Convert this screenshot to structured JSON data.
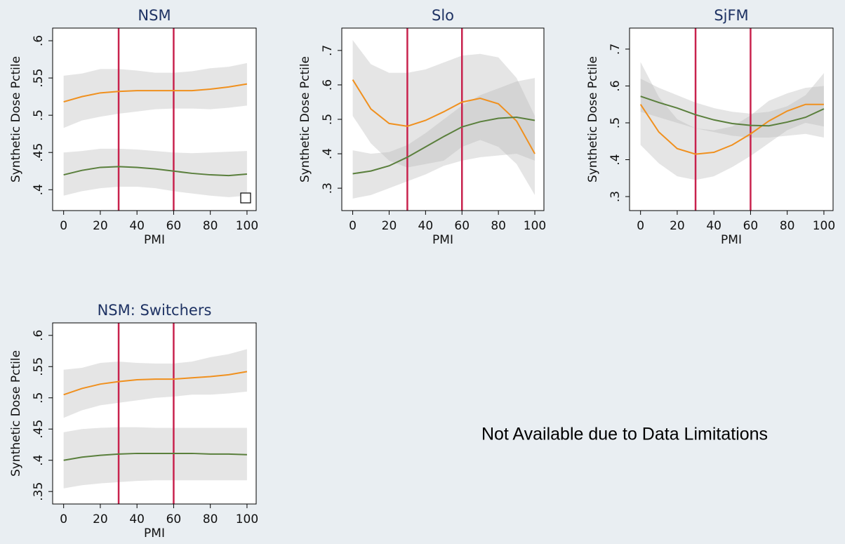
{
  "chart_data": [
    {
      "type": "line",
      "title": "NSM",
      "xlabel": "PMI",
      "ylabel": "Synthetic Dose Pctile",
      "x": [
        0,
        10,
        20,
        30,
        40,
        50,
        60,
        70,
        80,
        90,
        100
      ],
      "xlim": [
        -6,
        105
      ],
      "xticks": [
        0,
        20,
        40,
        60,
        80,
        100
      ],
      "ylim": [
        0.372,
        0.617
      ],
      "yticks": [
        {
          "value": 0.4,
          "label": ".4"
        },
        {
          "value": 0.45,
          "label": ".45"
        },
        {
          "value": 0.5,
          "label": ".5"
        },
        {
          "value": 0.55,
          "label": ".55"
        },
        {
          "value": 0.6,
          "label": ".6"
        }
      ],
      "vlines": [
        30,
        60
      ],
      "vline_color": "#c8224d",
      "band_color": "#b4b4b4",
      "series": [
        {
          "color": "#f0901e",
          "values": [
            0.518,
            0.525,
            0.53,
            0.532,
            0.533,
            0.533,
            0.533,
            0.533,
            0.535,
            0.538,
            0.542
          ],
          "upper": [
            0.553,
            0.556,
            0.562,
            0.562,
            0.56,
            0.557,
            0.557,
            0.559,
            0.563,
            0.565,
            0.57
          ],
          "lower": [
            0.483,
            0.493,
            0.498,
            0.502,
            0.505,
            0.508,
            0.509,
            0.509,
            0.508,
            0.51,
            0.513
          ]
        },
        {
          "color": "#5a7f3c",
          "values": [
            0.42,
            0.426,
            0.43,
            0.431,
            0.43,
            0.428,
            0.425,
            0.422,
            0.42,
            0.419,
            0.421
          ],
          "upper": [
            0.45,
            0.452,
            0.455,
            0.455,
            0.454,
            0.452,
            0.45,
            0.449,
            0.45,
            0.451,
            0.452
          ],
          "lower": [
            0.392,
            0.398,
            0.402,
            0.404,
            0.404,
            0.402,
            0.398,
            0.395,
            0.392,
            0.39,
            0.392
          ]
        }
      ]
    },
    {
      "type": "line",
      "title": "Slo",
      "xlabel": "PMI",
      "ylabel": "Synthetic Dose Pctile",
      "x": [
        0,
        10,
        20,
        30,
        40,
        50,
        60,
        70,
        80,
        90,
        100
      ],
      "xlim": [
        -6,
        105
      ],
      "xticks": [
        0,
        20,
        40,
        60,
        80,
        100
      ],
      "ylim": [
        0.235,
        0.765
      ],
      "yticks": [
        {
          "value": 0.3,
          "label": ".3"
        },
        {
          "value": 0.4,
          "label": ".4"
        },
        {
          "value": 0.5,
          "label": ".5"
        },
        {
          "value": 0.6,
          "label": ".6"
        },
        {
          "value": 0.7,
          "label": ".7"
        }
      ],
      "vlines": [
        30,
        60
      ],
      "vline_color": "#c8224d",
      "band_color": "#b4b4b4",
      "series": [
        {
          "color": "#f0901e",
          "values": [
            0.615,
            0.53,
            0.488,
            0.48,
            0.497,
            0.522,
            0.55,
            0.561,
            0.545,
            0.495,
            0.4
          ],
          "upper": [
            0.73,
            0.66,
            0.635,
            0.635,
            0.645,
            0.665,
            0.685,
            0.69,
            0.68,
            0.62,
            0.51
          ],
          "lower": [
            0.51,
            0.43,
            0.38,
            0.36,
            0.37,
            0.38,
            0.42,
            0.44,
            0.42,
            0.37,
            0.28
          ]
        },
        {
          "color": "#5a7f3c",
          "values": [
            0.342,
            0.35,
            0.365,
            0.39,
            0.42,
            0.45,
            0.478,
            0.493,
            0.503,
            0.506,
            0.497
          ],
          "upper": [
            0.41,
            0.4,
            0.405,
            0.425,
            0.46,
            0.5,
            0.54,
            0.57,
            0.59,
            0.61,
            0.62
          ],
          "lower": [
            0.27,
            0.28,
            0.3,
            0.32,
            0.34,
            0.365,
            0.38,
            0.39,
            0.395,
            0.4,
            0.38
          ]
        }
      ]
    },
    {
      "type": "line",
      "title": "SjFM",
      "xlabel": "PMI",
      "ylabel": "Synthetic Dose Pctile",
      "x": [
        0,
        10,
        20,
        30,
        40,
        50,
        60,
        70,
        80,
        90,
        100
      ],
      "xlim": [
        -6,
        105
      ],
      "xticks": [
        0,
        20,
        40,
        60,
        80,
        100
      ],
      "ylim": [
        0.262,
        0.757
      ],
      "yticks": [
        {
          "value": 0.3,
          "label": ".3"
        },
        {
          "value": 0.4,
          "label": ".4"
        },
        {
          "value": 0.5,
          "label": ".5"
        },
        {
          "value": 0.6,
          "label": ".6"
        },
        {
          "value": 0.7,
          "label": ".7"
        }
      ],
      "vlines": [
        30,
        60
      ],
      "vline_color": "#c8224d",
      "band_color": "#b4b4b4",
      "series": [
        {
          "color": "#f0901e",
          "values": [
            0.55,
            0.475,
            0.43,
            0.415,
            0.42,
            0.44,
            0.47,
            0.505,
            0.532,
            0.55,
            0.55
          ],
          "upper": [
            0.665,
            0.57,
            0.51,
            0.485,
            0.48,
            0.49,
            0.52,
            0.56,
            0.58,
            0.595,
            0.6
          ],
          "lower": [
            0.44,
            0.39,
            0.355,
            0.345,
            0.355,
            0.38,
            0.41,
            0.445,
            0.48,
            0.5,
            0.49
          ]
        },
        {
          "color": "#5a7f3c",
          "values": [
            0.572,
            0.555,
            0.54,
            0.522,
            0.508,
            0.498,
            0.493,
            0.492,
            0.502,
            0.515,
            0.538
          ],
          "upper": [
            0.62,
            0.595,
            0.575,
            0.555,
            0.54,
            0.53,
            0.525,
            0.53,
            0.545,
            0.575,
            0.635
          ],
          "lower": [
            0.53,
            0.515,
            0.5,
            0.485,
            0.475,
            0.465,
            0.46,
            0.46,
            0.465,
            0.47,
            0.46
          ]
        }
      ]
    },
    {
      "type": "line",
      "title": "NSM: Switchers",
      "xlabel": "PMI",
      "ylabel": "Synthetic Dose Pctile",
      "x": [
        0,
        10,
        20,
        30,
        40,
        50,
        60,
        70,
        80,
        90,
        100
      ],
      "xlim": [
        -6,
        105
      ],
      "xticks": [
        0,
        20,
        40,
        60,
        80,
        100
      ],
      "ylim": [
        0.33,
        0.62
      ],
      "yticks": [
        {
          "value": 0.35,
          "label": ".35"
        },
        {
          "value": 0.4,
          "label": ".4"
        },
        {
          "value": 0.45,
          "label": ".45"
        },
        {
          "value": 0.5,
          "label": ".5"
        },
        {
          "value": 0.55,
          "label": ".55"
        },
        {
          "value": 0.6,
          "label": ".6"
        }
      ],
      "vlines": [
        30,
        60
      ],
      "vline_color": "#c8224d",
      "band_color": "#b4b4b4",
      "series": [
        {
          "color": "#f0901e",
          "values": [
            0.505,
            0.515,
            0.522,
            0.526,
            0.529,
            0.53,
            0.53,
            0.532,
            0.534,
            0.537,
            0.542
          ],
          "upper": [
            0.545,
            0.548,
            0.556,
            0.558,
            0.556,
            0.555,
            0.555,
            0.558,
            0.565,
            0.57,
            0.578
          ],
          "lower": [
            0.468,
            0.48,
            0.488,
            0.492,
            0.496,
            0.5,
            0.502,
            0.505,
            0.505,
            0.507,
            0.51
          ]
        },
        {
          "color": "#5a7f3c",
          "values": [
            0.4,
            0.405,
            0.408,
            0.41,
            0.411,
            0.411,
            0.411,
            0.411,
            0.41,
            0.41,
            0.409
          ],
          "upper": [
            0.445,
            0.45,
            0.452,
            0.453,
            0.453,
            0.452,
            0.452,
            0.452,
            0.452,
            0.452,
            0.452
          ],
          "lower": [
            0.355,
            0.36,
            0.363,
            0.365,
            0.367,
            0.368,
            0.368,
            0.368,
            0.368,
            0.368,
            0.368
          ]
        }
      ]
    }
  ],
  "annotation": "Not Available due to Data Limitations"
}
